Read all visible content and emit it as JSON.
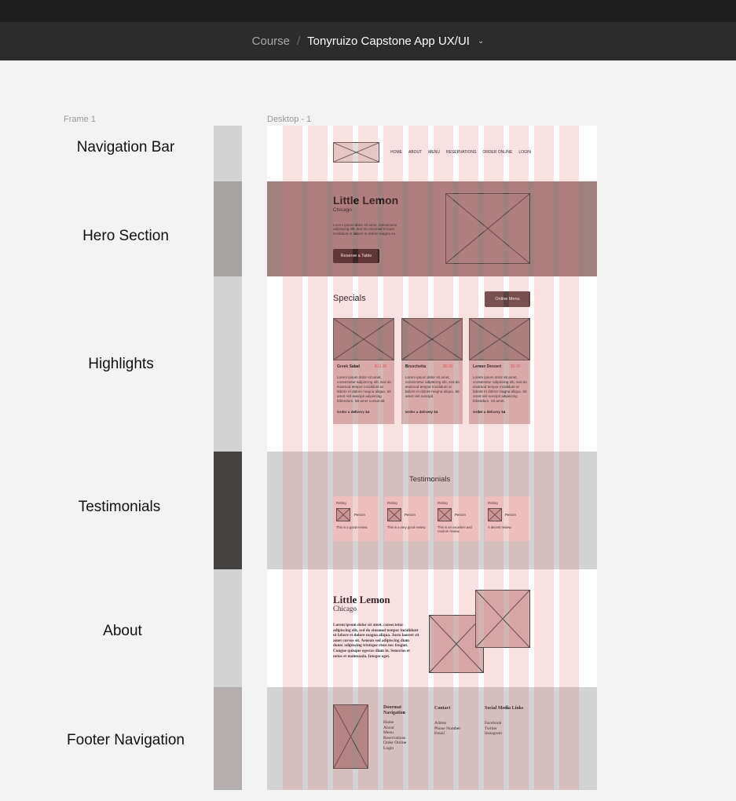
{
  "header": {
    "breadcrumb_course": "Course",
    "breadcrumb_separator": "/",
    "file_name": "Tonyruizo Capstone App UX/UI",
    "chevron_icon": "chevron-down-icon"
  },
  "canvas": {
    "frame1_label": "Frame 1",
    "desktop_label": "Desktop - 1"
  },
  "sections": [
    {
      "label": "Navigation Bar",
      "color": "#d3d3d3"
    },
    {
      "label": "Hero Section",
      "color": "#a8a3a3"
    },
    {
      "label": "Highlights",
      "color": "#d3d3d3"
    },
    {
      "label": "Testimonials",
      "color": "#454242"
    },
    {
      "label": "About",
      "color": "#d3d3d3"
    },
    {
      "label": "Footer Navigation",
      "color": "#b5aeae"
    }
  ],
  "wireframe": {
    "nav": {
      "links": [
        "HOME",
        "ABOUT",
        "MENU",
        "RESERVATIONS",
        "ORDER ONLINE",
        "LOGIN"
      ]
    },
    "hero": {
      "title": "Little Lemon",
      "subtitle": "Chicago",
      "body": "Lorem ipsum dolor sit amet, consectetur adipiscing elit, sed do eiusmod tempor incididunt ut labore et dolore magna ex.",
      "button": "Reserve a Table"
    },
    "specials": {
      "title": "Specials",
      "button": "Online Menu",
      "cards": [
        {
          "name": "Greek Salad",
          "price": "$12.00",
          "body": "Lorem ipsum dolor sit amet, consectetur adipiscing elit, sed do eiusmod tempor incididunt ut labore et dolore magna aliqua. Sit amet nisl suscipit adipiscing bibendum. Sit amet cursus sit",
          "link": "Order a delivery $4"
        },
        {
          "name": "Bruschetta",
          "price": "$5.00",
          "body": "Lorem ipsum dolor sit amet, consectetur adipiscing elit, sed do eiusmod tempor incididunt ut labore et dolore magna aliqua. Sit amet nisl suscipit.",
          "link": "Order a delivery $4"
        },
        {
          "name": "Lemon Dessert",
          "price": "$5.00",
          "body": "Lorem ipsum dolor sit amet, consectetur adipiscing elit, sed do eiusmod tempor incididunt ut labore et dolore magna aliqua. Sit amet nisl suscipit adipiscing bibendum. Sit amet.",
          "link": "Order a delivery $4"
        }
      ]
    },
    "testimonials": {
      "title": "Testimonials",
      "cards": [
        {
          "rating": "Rating",
          "person": "Person",
          "review": "This is a good review."
        },
        {
          "rating": "Rating",
          "person": "Person",
          "review": "This is a very good review."
        },
        {
          "rating": "Rating",
          "person": "Person",
          "review": "This is an excellent and random review."
        },
        {
          "rating": "Rating",
          "person": "Person",
          "review": "A decent review."
        }
      ]
    },
    "about": {
      "title": "Little Lemon",
      "subtitle": "Chicago",
      "body": "Lorem ipsum dolor sit amet, consectetur adipiscing elit, sed do eiusmod tempor incididunt ut labore et dolore magna aliqua. Justo laoreet sit amet cursus sit. Aenean sed adipiscing diam donec adipiscing tristique risus nec feugiat. Congue quisque egestas diam in. Senectus et netus et malesuada. Integer eget."
    },
    "footer": {
      "col1_title": "Doormat Navigation",
      "col1_items": [
        "Home",
        "About",
        "Menu",
        "Reservations",
        "Order Online",
        "Login"
      ],
      "col2_title": "Contact",
      "col2_items": [
        "Adress",
        "Phone Number",
        "Email"
      ],
      "col3_title": "Social Media Links",
      "col3_items": [
        "Facebook",
        "Twitter",
        "Instagram"
      ]
    }
  },
  "colors": {
    "grid_column": "#e87878",
    "hero_band": "#a18080",
    "button_dark": "#3a2525",
    "button_medium": "#5a4444",
    "price_red": "#e05555"
  }
}
